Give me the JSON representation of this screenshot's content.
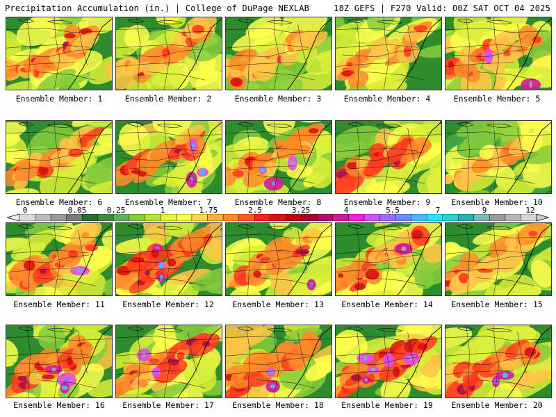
{
  "header": {
    "title": "Precipitation Accumulation (in.) | College of DuPage NEXLAB",
    "run_info": "18Z GEFS | F270 Valid: 00Z SAT OCT 04 2025"
  },
  "colorbar": {
    "ticks": [
      "0",
      "0.05",
      "0.25",
      "1",
      "1.75",
      "2.5",
      "3.25",
      "4",
      "5.5",
      "7",
      "9",
      "12"
    ],
    "colors": [
      "#dcdcdc",
      "#bdbdbd",
      "#9a9a9a",
      "#7a7a7a",
      "#2e6b2e",
      "#3a8f3a",
      "#5cb35c",
      "#86cc3c",
      "#b9e33b",
      "#e8f23a",
      "#ffff4d",
      "#ffd84a",
      "#ffb13d",
      "#ff8a2a",
      "#ff5a1e",
      "#ff1e1e",
      "#e01010",
      "#b80a0a",
      "#9a0a2a",
      "#b0106a",
      "#d01aa0",
      "#ee22d0",
      "#cc55ee",
      "#9b6aff",
      "#6f8cff",
      "#4ab8ff",
      "#22e8ff",
      "#2cd2d0",
      "#2ab0b0",
      "#7ab8b8",
      "#999999",
      "#b6b6b6",
      "#d6d6d6"
    ]
  },
  "ensemble_label_prefix": "Ensemble Member: ",
  "members": [
    {
      "label": "Ensemble Member: 1"
    },
    {
      "label": "Ensemble Member: 2"
    },
    {
      "label": "Ensemble Member: 3"
    },
    {
      "label": "Ensemble Member: 4"
    },
    {
      "label": "Ensemble Member: 5"
    },
    {
      "label": "Ensemble Member: 6"
    },
    {
      "label": "Ensemble Member: 7"
    },
    {
      "label": "Ensemble Member: 8"
    },
    {
      "label": "Ensemble Member: 9"
    },
    {
      "label": "Ensemble Member: 10"
    },
    {
      "label": "Ensemble Member: 11"
    },
    {
      "label": "Ensemble Member: 12"
    },
    {
      "label": "Ensemble Member: 13"
    },
    {
      "label": "Ensemble Member: 14"
    },
    {
      "label": "Ensemble Member: 15"
    },
    {
      "label": "Ensemble Member: 16"
    },
    {
      "label": "Ensemble Member: 17"
    },
    {
      "label": "Ensemble Member: 18"
    },
    {
      "label": "Ensemble Member: 19"
    },
    {
      "label": "Ensemble Member: 20"
    }
  ]
}
